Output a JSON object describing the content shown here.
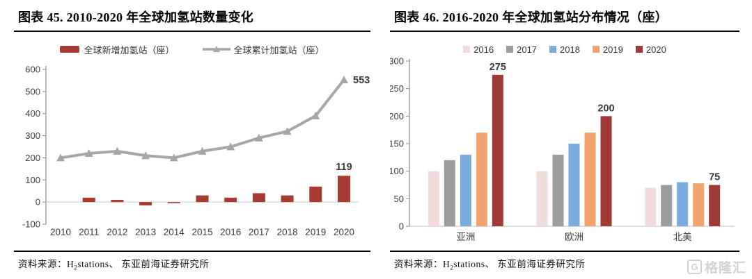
{
  "panels": [
    {
      "title": "图表 45. 2010-2020 年全球加氢站数量变化",
      "source_prefix": "资料来源：H",
      "source_sub": "2",
      "source_suffix": "stations、 东亚前海证券研究所"
    },
    {
      "title": "图表 46. 2016-2020 年全球加氢站分布情况（座）",
      "source_prefix": "资料来源：H",
      "source_sub": "2",
      "source_suffix": "stations、 东亚前海证券研究所"
    }
  ],
  "chart_data": [
    {
      "type": "combo-bar-line",
      "title": "2010-2020 年全球加氢站数量变化",
      "categories": [
        "2010",
        "2011",
        "2012",
        "2013",
        "2014",
        "2015",
        "2016",
        "2017",
        "2018",
        "2019",
        "2020"
      ],
      "series": [
        {
          "name": "全球新增加氢站（座）",
          "kind": "bar",
          "color": "#A63B32",
          "values": [
            0,
            20,
            10,
            -15,
            -5,
            30,
            20,
            40,
            30,
            70,
            119
          ]
        },
        {
          "name": "全球累计加氢站（座）",
          "kind": "line",
          "color": "#A6A6A6",
          "values": [
            200,
            220,
            230,
            210,
            200,
            230,
            250,
            290,
            320,
            390,
            553
          ]
        }
      ],
      "ylim": [
        -100,
        600
      ],
      "ytick_step": 100,
      "grid": false,
      "legend_position": "top",
      "data_labels": [
        {
          "series": 0,
          "index": 10,
          "text": "119"
        },
        {
          "series": 1,
          "index": 10,
          "text": "553"
        }
      ]
    },
    {
      "type": "bar",
      "title": "2016-2020 年全球加氢站分布情况（座）",
      "categories": [
        "亚洲",
        "欧洲",
        "北美"
      ],
      "series": [
        {
          "name": "2016",
          "color": "#F2DCDB",
          "values": [
            100,
            100,
            70
          ]
        },
        {
          "name": "2017",
          "color": "#9C9C9C",
          "values": [
            120,
            130,
            75
          ]
        },
        {
          "name": "2018",
          "color": "#79ABDC",
          "values": [
            130,
            150,
            80
          ]
        },
        {
          "name": "2019",
          "color": "#F2A36E",
          "values": [
            170,
            170,
            78
          ]
        },
        {
          "name": "2020",
          "color": "#9E3A36",
          "values": [
            275,
            200,
            75
          ]
        }
      ],
      "ylim": [
        0,
        300
      ],
      "ytick_step": 50,
      "grid": false,
      "legend_position": "top",
      "data_labels": [
        {
          "series": 4,
          "index": 0,
          "text": "275"
        },
        {
          "series": 4,
          "index": 1,
          "text": "200"
        },
        {
          "series": 4,
          "index": 2,
          "text": "75"
        }
      ]
    }
  ],
  "watermark": {
    "logo_letter": "G",
    "text": "格隆汇"
  }
}
